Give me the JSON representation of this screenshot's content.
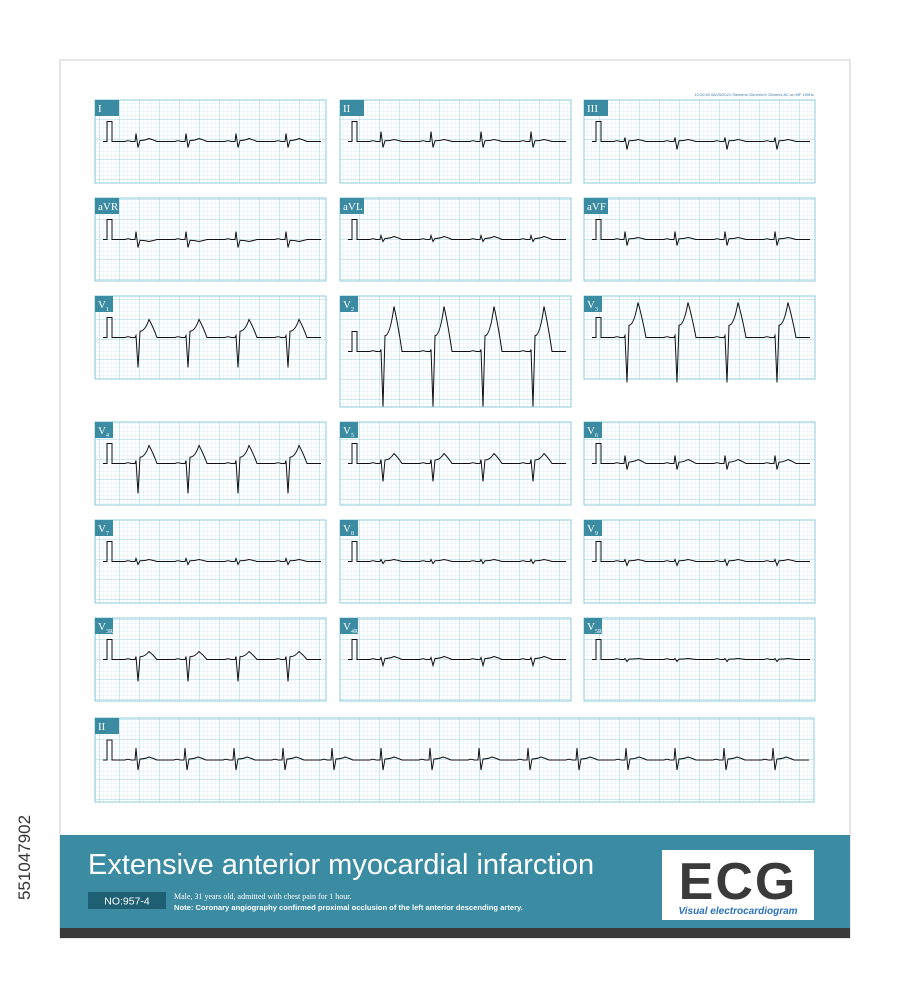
{
  "header": {
    "recording_info": "10:20:50 08/25/2021 Siemens 10mm/mV 25mm/s AC on MF 150Hz"
  },
  "leads": [
    {
      "lead": "I",
      "sub": ""
    },
    {
      "lead": "II",
      "sub": ""
    },
    {
      "lead": "III",
      "sub": ""
    },
    {
      "lead": "aVR",
      "sub": ""
    },
    {
      "lead": "aVL",
      "sub": ""
    },
    {
      "lead": "aVF",
      "sub": ""
    },
    {
      "lead": "V",
      "sub": "1"
    },
    {
      "lead": "V",
      "sub": "2"
    },
    {
      "lead": "V",
      "sub": "3"
    },
    {
      "lead": "V",
      "sub": "4"
    },
    {
      "lead": "V",
      "sub": "5"
    },
    {
      "lead": "V",
      "sub": "6"
    },
    {
      "lead": "V",
      "sub": "7"
    },
    {
      "lead": "V",
      "sub": "8"
    },
    {
      "lead": "V",
      "sub": "9"
    },
    {
      "lead": "V",
      "sub": "3R"
    },
    {
      "lead": "V",
      "sub": "4R"
    },
    {
      "lead": "V",
      "sub": "5R"
    }
  ],
  "rhythm_strip": {
    "lead": "II"
  },
  "footer": {
    "title": "Extensive anterior myocardial infarction",
    "case_number": "NO:957-4",
    "patient": "Male, 31 years old, admitted with chest pain for 1 hour.",
    "note": "Note: Coronary angiography confirmed proximal occlusion of the left anterior descending artery.",
    "logo": "ECG",
    "logo_subtitle": "Visual electrocardiogram"
  },
  "stock_id": "551047902"
}
